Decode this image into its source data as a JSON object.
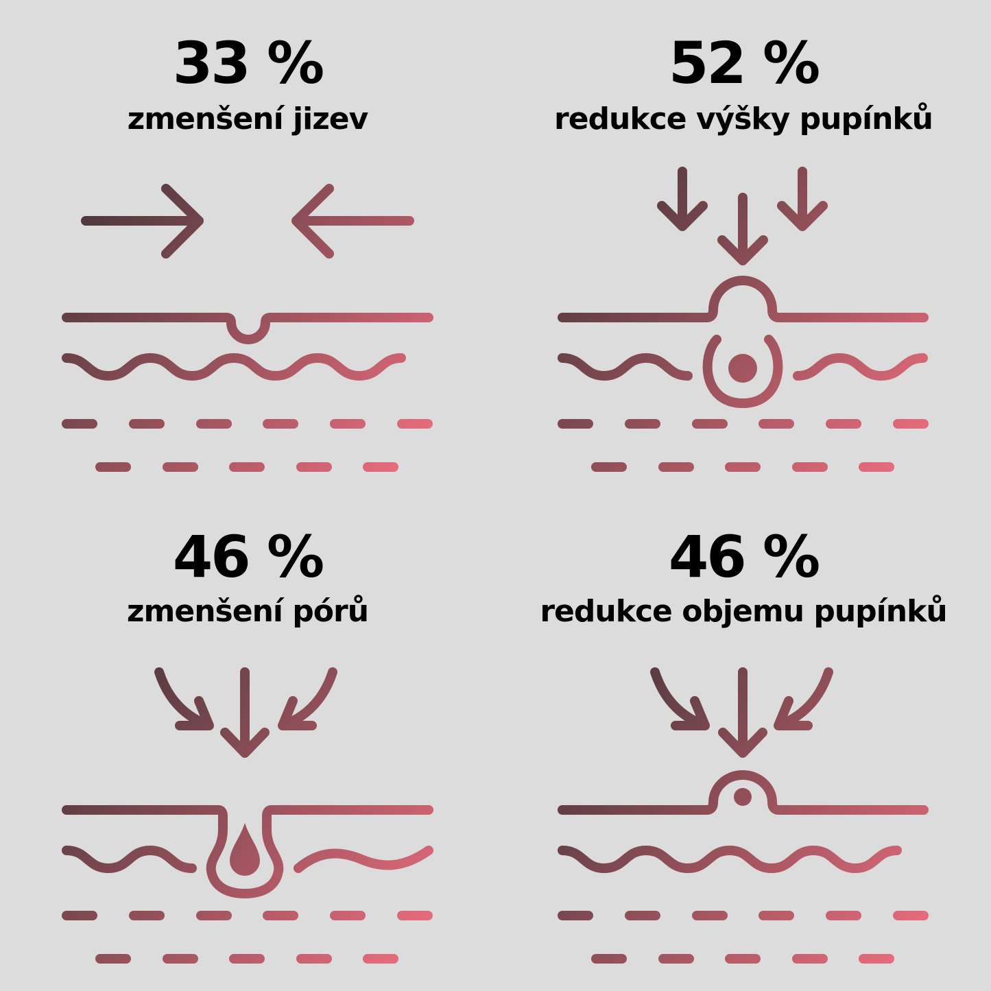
{
  "colors": {
    "background": "#dcdcdc",
    "gradient_start": "#3e3336",
    "gradient_end": "#f27081"
  },
  "panels": [
    {
      "value": "33 %",
      "label": "zmenšení jizev",
      "icon": "scar-reduction-icon"
    },
    {
      "value": "52 %",
      "label": "redukce výšky pupínků",
      "icon": "pimple-height-reduction-icon"
    },
    {
      "value": "46 %",
      "label": "zmenšení pórů",
      "icon": "pore-reduction-icon"
    },
    {
      "value": "46 %",
      "label": "redukce objemu pupínků",
      "icon": "pimple-volume-reduction-icon"
    }
  ]
}
